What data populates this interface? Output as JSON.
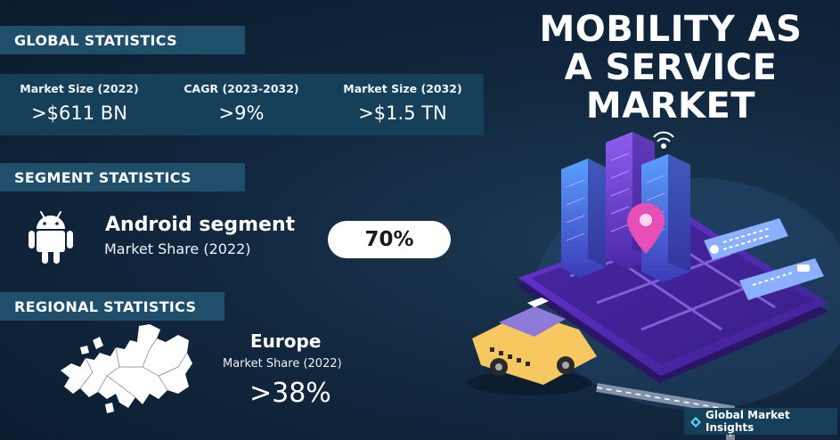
{
  "title": "MOBILITY AS A SERVICE MARKET",
  "global": {
    "heading": "GLOBAL STATISTICS",
    "stats": [
      {
        "label": "Market Size (2022)",
        "value": ">$611 BN"
      },
      {
        "label": "CAGR (2023-2032)",
        "value": ">9%"
      },
      {
        "label": "Market Size (2032)",
        "value": ">$1.5 TN"
      }
    ]
  },
  "segment": {
    "heading": "SEGMENT STATISTICS",
    "name": "Android segment",
    "sublabel": "Market Share (2022)",
    "value": "70%",
    "icon": "android-icon"
  },
  "regional": {
    "heading": "REGIONAL STATISTICS",
    "region": "Europe",
    "sublabel": "Market Share (2022)",
    "value": ">38%",
    "icon": "europe-map-icon"
  },
  "brand": {
    "name": "Global Market Insights",
    "logo_icon": "gmi-logo-icon"
  },
  "colors": {
    "banner": "#1f4f6b",
    "panel": "#16405a",
    "background": "#12283f",
    "accent_purple": "#7b3fe4",
    "accent_pink": "#e64fb5",
    "taxi_yellow": "#f6c85f"
  }
}
